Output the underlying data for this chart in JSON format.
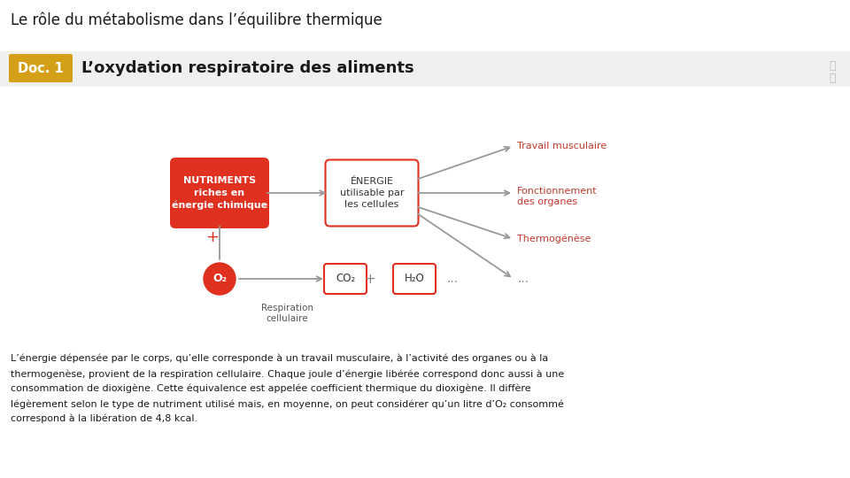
{
  "title": "Le rôle du métabolisme dans l’équilibre thermique",
  "doc_label": "Doc. 1",
  "doc_label_bg": "#D4A017",
  "doc_title": "L’oxydation respiratoire des aliments",
  "bg_color": "#ffffff",
  "nutriments_text": "NUTRIMENTS\nriches en\nénergie chimique",
  "nutriments_bg": "#E03020",
  "nutriments_text_color": "#ffffff",
  "energie_text": "ÉNERGIE\nutilisable par\nles cellules",
  "energie_bg": "#ffffff",
  "energie_border": "#E03020",
  "o2_text": "O₂",
  "o2_bg": "#E03020",
  "o2_text_color": "#ffffff",
  "co2_text": "CO₂",
  "co2_bg": "#ffffff",
  "co2_border": "#E03020",
  "h2o_text": "H₂O",
  "h2o_bg": "#ffffff",
  "h2o_border": "#E03020",
  "respiration_text": "Respiration\ncellulaire",
  "travail_text": "Travail musculaire",
  "fonctionnement_text": "Fonctionnement\ndes organes",
  "thermogenese_text": "Thermogénèse",
  "dots_text": "...",
  "output_color": "#C0392B",
  "arrow_color": "#999999",
  "para_line1": "L’énergie dépensée par le corps, qu’elle corresponde à un travail musculaire, à l’activité des organes ou à la",
  "para_line2": "thermogenèse, provient de la respiration cellulaire. Chaque joule d’énergie libérée correspond donc aussi à une",
  "para_line3": "consommation de dioxigène. Cette équivalence est appelée coefficient thermique du dioxigène. Il diffère",
  "para_line4": "légèrement selon le type de nutriment utilisé mais, en moyenne, on peut considérer qu’un litre d’O₂ consommé",
  "para_line5": "correspond à la libération de 4,8 kcal.",
  "expand_icon_color": "#bbbbbb",
  "title_fontsize": 12,
  "doc_title_fontsize": 13,
  "para_fontsize": 8.0,
  "diag_fontsize": 8.0
}
